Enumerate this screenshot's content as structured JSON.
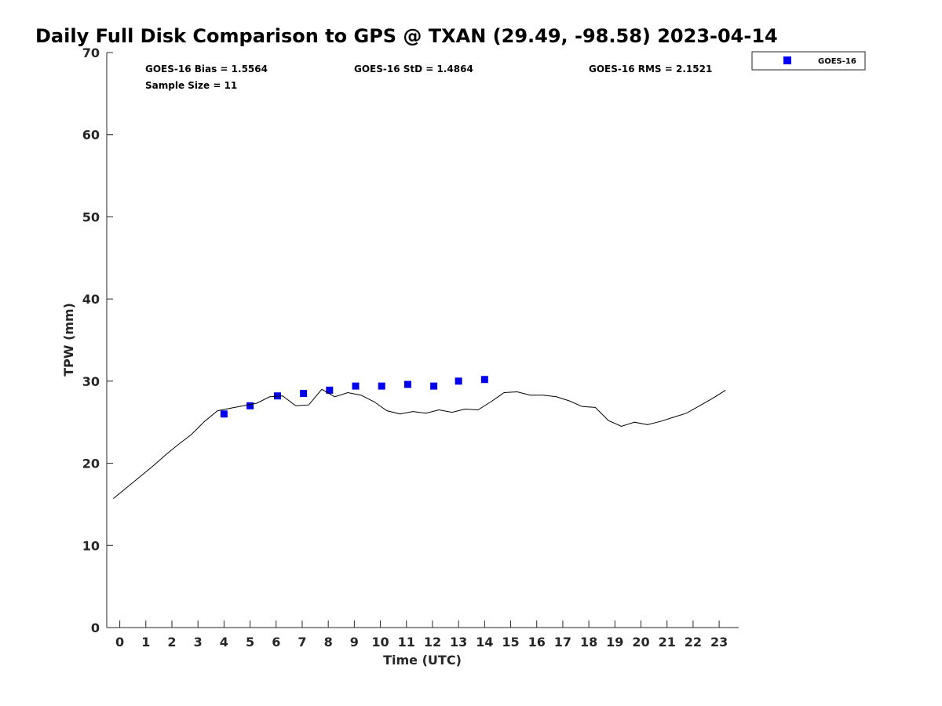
{
  "chart_data": {
    "type": "scatter",
    "title": "Daily Full Disk Comparison to GPS @ TXAN (29.49, -98.58) 2023-04-14",
    "xlabel": "Time (UTC)",
    "ylabel": "TPW (mm)",
    "xlim": [
      -0.5,
      23.75
    ],
    "ylim": [
      0,
      70
    ],
    "x_ticks": [
      "0",
      "1",
      "2",
      "3",
      "4",
      "5",
      "6",
      "7",
      "8",
      "9",
      "10",
      "11",
      "12",
      "13",
      "14",
      "15",
      "16",
      "17",
      "18",
      "19",
      "20",
      "21",
      "22",
      "23"
    ],
    "y_ticks": [
      "0",
      "10",
      "20",
      "30",
      "40",
      "50",
      "60",
      "70"
    ],
    "grid": false,
    "legend": {
      "position": "top-right",
      "entries": [
        "GOES-16"
      ]
    },
    "stats": {
      "bias": "GOES-16 Bias = 1.5564",
      "std": "GOES-16 StD = 1.4864",
      "rms": "GOES-16 RMS = 2.1521",
      "sample": "Sample Size = 11"
    },
    "series": [
      {
        "name": "GOES-16",
        "type": "scatter",
        "color": "#0000ee",
        "x": [
          4.0,
          5.0,
          6.05,
          7.05,
          8.05,
          9.05,
          10.05,
          11.05,
          12.05,
          13.0,
          14.0
        ],
        "y": [
          26.0,
          27.0,
          28.2,
          28.5,
          28.9,
          29.4,
          29.4,
          29.6,
          29.4,
          30.0,
          30.2
        ]
      },
      {
        "type": "line",
        "color": "#000000",
        "x": [
          -0.25,
          0.25,
          0.75,
          1.25,
          1.75,
          2.25,
          2.75,
          3.25,
          3.75,
          4.25,
          4.75,
          5.25,
          5.75,
          6.25,
          6.75,
          7.25,
          7.75,
          8.25,
          8.75,
          9.25,
          9.75,
          10.25,
          10.75,
          11.25,
          11.75,
          12.25,
          12.75,
          13.25,
          13.75,
          14.25,
          14.75,
          15.25,
          15.75,
          16.25,
          16.75,
          17.25,
          17.75,
          18.25,
          18.75,
          19.25,
          19.75,
          20.25,
          20.75,
          21.25,
          21.75,
          22.25,
          22.75,
          23.25
        ],
        "y": [
          15.7,
          17.0,
          18.3,
          19.6,
          21.0,
          22.3,
          23.5,
          25.1,
          26.4,
          26.7,
          27.0,
          27.3,
          28.1,
          28.2,
          27.0,
          27.1,
          29.0,
          28.1,
          28.6,
          28.3,
          27.5,
          26.4,
          26.0,
          26.3,
          26.1,
          26.5,
          26.2,
          26.6,
          26.5,
          27.5,
          28.6,
          28.7,
          28.3,
          28.3,
          28.1,
          27.6,
          26.9,
          26.8,
          25.2,
          24.5,
          25.0,
          24.7,
          25.1,
          25.6,
          26.1,
          27.0,
          27.9,
          28.9
        ]
      }
    ]
  }
}
